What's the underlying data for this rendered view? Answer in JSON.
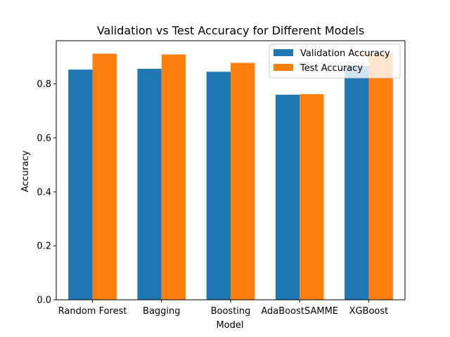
{
  "chart_data": {
    "type": "bar",
    "title": "Validation vs Test Accuracy for Different Models",
    "xlabel": "Model",
    "ylabel": "Accuracy",
    "categories": [
      "Random Forest",
      "Bagging",
      "Boosting",
      "AdaBoostSAMME",
      "XGBoost"
    ],
    "series": [
      {
        "name": "Validation Accuracy",
        "color": "#1f77b4",
        "values": [
          0.853,
          0.856,
          0.845,
          0.76,
          0.866
        ]
      },
      {
        "name": "Test Accuracy",
        "color": "#ff7f0e",
        "values": [
          0.912,
          0.909,
          0.878,
          0.762,
          0.914
        ]
      }
    ],
    "ylim": [
      0,
      0.96
    ],
    "yticks": [
      "0.0",
      "0.2",
      "0.4",
      "0.6",
      "0.8"
    ],
    "legend": "top-right",
    "grid": false
  }
}
